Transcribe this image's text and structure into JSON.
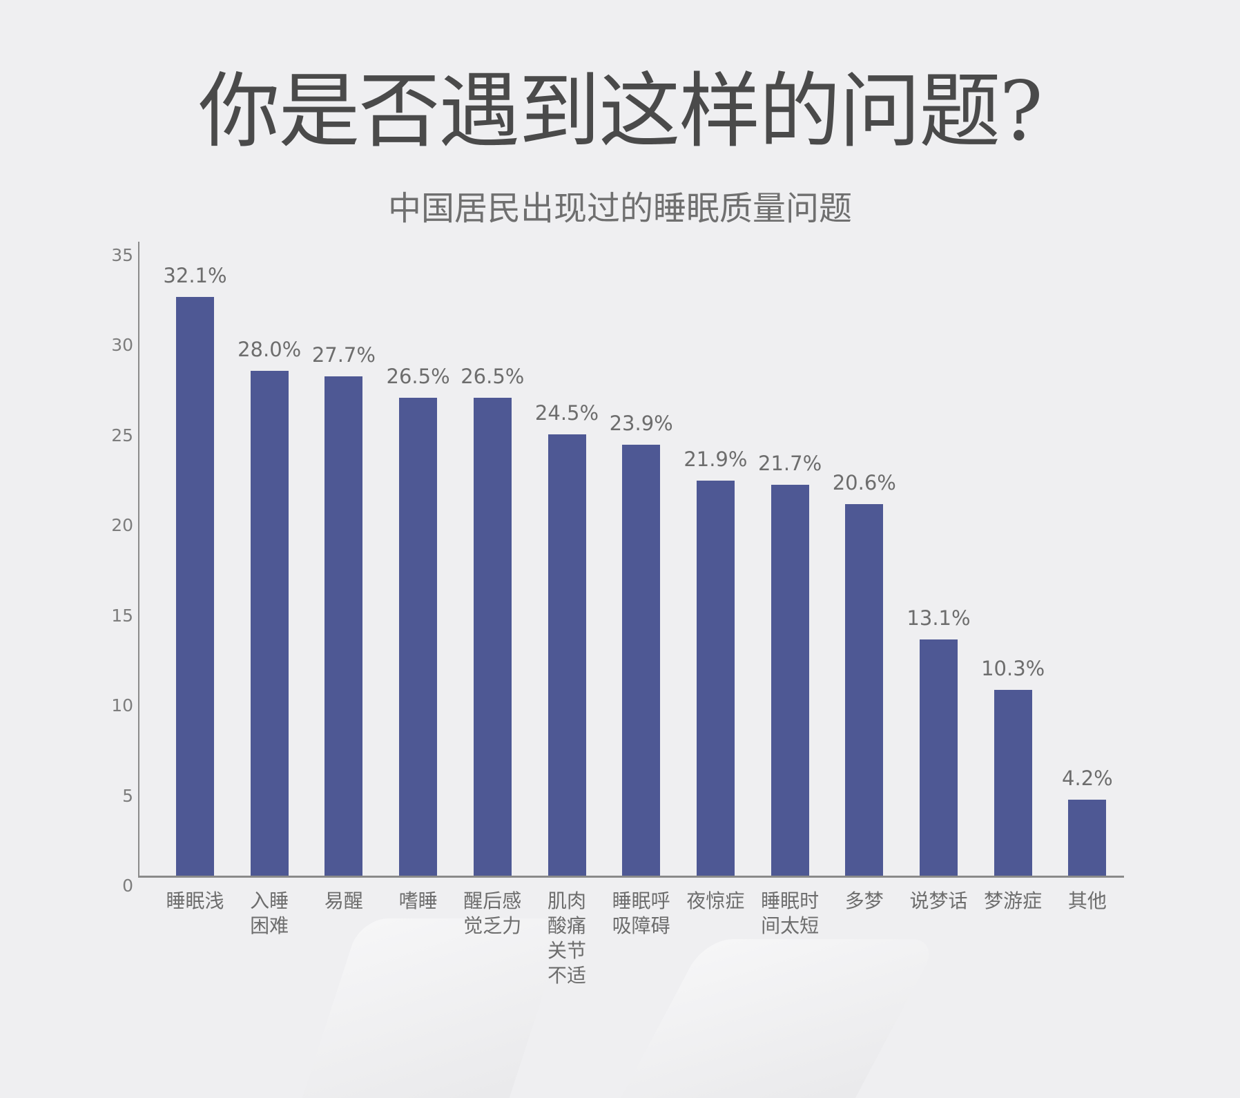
{
  "page": {
    "title": "你是否遇到这样的问题?",
    "subtitle": "中国居民出现过的睡眠质量问题"
  },
  "colors": {
    "bar": "#4e5894",
    "background": "#efeff1",
    "title": "#4a4a4a",
    "text": "#6d6d6d",
    "axis": "#8a8a8a"
  },
  "chart_data": {
    "type": "bar",
    "title": "中国居民出现过的睡眠质量问题",
    "xlabel": "",
    "ylabel": "",
    "ylim": [
      0,
      35
    ],
    "yticks": [
      0,
      5,
      10,
      15,
      20,
      25,
      30,
      35
    ],
    "grid": false,
    "legend": null,
    "categories": [
      "睡眠浅",
      "入睡困难",
      "易醒",
      "嗜睡",
      "醒后感觉乏力",
      "肌肉酸痛关节不适",
      "睡眠呼吸障碍",
      "夜惊症",
      "睡眠时间太短",
      "多梦",
      "说梦话",
      "梦游症",
      "其他"
    ],
    "category_lines": [
      [
        "睡眠浅"
      ],
      [
        "入睡",
        "困难"
      ],
      [
        "易醒"
      ],
      [
        "嗜睡"
      ],
      [
        "醒后感",
        "觉乏力"
      ],
      [
        "肌肉",
        "酸痛",
        "关节",
        "不适"
      ],
      [
        "睡眠呼",
        "吸障碍"
      ],
      [
        "夜惊症"
      ],
      [
        "睡眠时",
        "间太短"
      ],
      [
        "多梦"
      ],
      [
        "说梦话"
      ],
      [
        "梦游症"
      ],
      [
        "其他"
      ]
    ],
    "values": [
      32.1,
      28.0,
      27.7,
      26.5,
      26.5,
      24.5,
      23.9,
      21.9,
      21.7,
      20.6,
      13.1,
      10.3,
      4.2
    ],
    "value_labels": [
      "32.1%",
      "28.0%",
      "27.7%",
      "26.5%",
      "26.5%",
      "24.5%",
      "23.9%",
      "21.9%",
      "21.7%",
      "20.6%",
      "13.1%",
      "10.3%",
      "4.2%"
    ]
  }
}
